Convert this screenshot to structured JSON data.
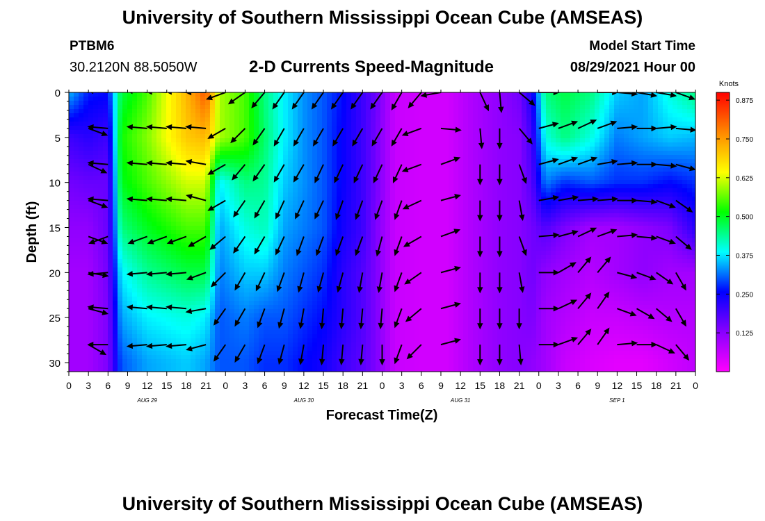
{
  "header": {
    "title": "University of Southern Mississippi Ocean Cube (AMSEAS)",
    "station_id": "PTBM6",
    "station_coords": "30.2120N  88.5050W",
    "plot_title": "2-D Currents Speed-Magnitude",
    "model_start_label": "Model Start Time",
    "model_start_value": "08/29/2021 Hour 00"
  },
  "footer": {
    "title": "University of Southern Mississippi Ocean Cube (AMSEAS)"
  },
  "colors": {
    "arrow": "#000000",
    "frame": "#000000"
  },
  "chart_data": {
    "type": "heatmap",
    "title": "2-D Currents Speed-Magnitude",
    "xlabel": "Forecast Time(Z)",
    "ylabel": "Depth (ft)",
    "x_tick_labels": [
      "0",
      "3",
      "6",
      "9",
      "12",
      "15",
      "18",
      "21",
      "0",
      "3",
      "6",
      "9",
      "12",
      "15",
      "18",
      "21",
      "0",
      "3",
      "6",
      "9",
      "12",
      "15",
      "18",
      "21",
      "0",
      "3",
      "6",
      "9",
      "12",
      "15",
      "18",
      "21",
      "0"
    ],
    "x_hours": [
      0,
      3,
      6,
      9,
      12,
      15,
      18,
      21,
      24,
      27,
      30,
      33,
      36,
      39,
      42,
      45,
      48,
      51,
      54,
      57,
      60,
      63,
      66,
      69,
      72,
      75,
      78,
      81,
      84,
      87,
      90,
      93,
      96
    ],
    "xlim": [
      0,
      96
    ],
    "date_labels": [
      {
        "label": "AUG 29",
        "hour": 12
      },
      {
        "label": "AUG 30",
        "hour": 36
      },
      {
        "label": "AUG 31",
        "hour": 60
      },
      {
        "label": "SEP 1",
        "hour": 84
      }
    ],
    "y_ticks": [
      0,
      5,
      10,
      15,
      20,
      25,
      30
    ],
    "ylim": [
      0,
      31
    ],
    "y_inverted": true,
    "colorbar": {
      "unit": "Knots",
      "ticks": [
        "0.125",
        "0.250",
        "0.375",
        "0.500",
        "0.625",
        "0.750",
        "0.875"
      ],
      "range": [
        0,
        0.9
      ],
      "colors": [
        "#ff00ff",
        "#8800ff",
        "#0000ff",
        "#00ffff",
        "#00ff00",
        "#ffff00",
        "#ff8800",
        "#ff0000"
      ]
    },
    "speed_field": {
      "hours": [
        0,
        3,
        6,
        8,
        12,
        18,
        21,
        23,
        27,
        30,
        33,
        36,
        39,
        42,
        45,
        47,
        50,
        54,
        58,
        62,
        66,
        69,
        71,
        73,
        76,
        80,
        84,
        88,
        92,
        96
      ],
      "depths": [
        0,
        5,
        10,
        15,
        20,
        25,
        30
      ],
      "speed_knots": [
        [
          0.35,
          0.27,
          0.26,
          0.48,
          0.55,
          0.72,
          0.82,
          0.6,
          0.55,
          0.45,
          0.38,
          0.33,
          0.3,
          0.26,
          0.2,
          0.16,
          0.06,
          0.05,
          0.05,
          0.09,
          0.12,
          0.15,
          0.24,
          0.45,
          0.48,
          0.45,
          0.36,
          0.34,
          0.4,
          0.45
        ],
        [
          0.2,
          0.22,
          0.2,
          0.52,
          0.58,
          0.7,
          0.72,
          0.6,
          0.55,
          0.46,
          0.38,
          0.33,
          0.3,
          0.25,
          0.2,
          0.15,
          0.06,
          0.05,
          0.05,
          0.09,
          0.12,
          0.13,
          0.2,
          0.4,
          0.45,
          0.4,
          0.32,
          0.34,
          0.36,
          0.35
        ],
        [
          0.15,
          0.16,
          0.16,
          0.5,
          0.55,
          0.62,
          0.62,
          0.38,
          0.45,
          0.44,
          0.36,
          0.33,
          0.3,
          0.25,
          0.2,
          0.15,
          0.06,
          0.05,
          0.05,
          0.09,
          0.12,
          0.13,
          0.18,
          0.32,
          0.28,
          0.3,
          0.28,
          0.28,
          0.26,
          0.28
        ],
        [
          0.12,
          0.12,
          0.16,
          0.45,
          0.5,
          0.55,
          0.55,
          0.34,
          0.4,
          0.42,
          0.34,
          0.32,
          0.3,
          0.24,
          0.2,
          0.14,
          0.06,
          0.05,
          0.05,
          0.09,
          0.12,
          0.13,
          0.15,
          0.18,
          0.14,
          0.1,
          0.1,
          0.12,
          0.14,
          0.22
        ],
        [
          0.1,
          0.1,
          0.15,
          0.38,
          0.44,
          0.48,
          0.48,
          0.32,
          0.36,
          0.36,
          0.32,
          0.3,
          0.28,
          0.22,
          0.18,
          0.14,
          0.06,
          0.05,
          0.05,
          0.09,
          0.12,
          0.13,
          0.15,
          0.12,
          0.1,
          0.08,
          0.1,
          0.12,
          0.1,
          0.1
        ],
        [
          0.1,
          0.1,
          0.14,
          0.34,
          0.38,
          0.4,
          0.38,
          0.3,
          0.32,
          0.3,
          0.3,
          0.28,
          0.26,
          0.22,
          0.18,
          0.14,
          0.06,
          0.05,
          0.05,
          0.09,
          0.12,
          0.13,
          0.14,
          0.1,
          0.08,
          0.06,
          0.06,
          0.07,
          0.08,
          0.08
        ],
        [
          0.1,
          0.1,
          0.14,
          0.3,
          0.34,
          0.36,
          0.34,
          0.3,
          0.3,
          0.28,
          0.28,
          0.26,
          0.24,
          0.2,
          0.17,
          0.14,
          0.06,
          0.05,
          0.05,
          0.09,
          0.12,
          0.13,
          0.12,
          0.1,
          0.06,
          0.04,
          0.03,
          0.03,
          0.05,
          0.07
        ]
      ]
    },
    "vector_field": {
      "hours": [
        3,
        6,
        12,
        15,
        18,
        21,
        24,
        27,
        30,
        33,
        36,
        39,
        42,
        45,
        48,
        51,
        54,
        57,
        63,
        66,
        69,
        72,
        75,
        78,
        81,
        84,
        87,
        90,
        93,
        96
      ],
      "depths": [
        0,
        4,
        8,
        12,
        16,
        20,
        24,
        28
      ],
      "direction_deg": [
        [
          280,
          275,
          275,
          272,
          272,
          270,
          250,
          235,
          220,
          215,
          215,
          215,
          215,
          215,
          215,
          210,
          220,
          260,
          155,
          175,
          130,
          90,
          80,
          75,
          90,
          95,
          100,
          100,
          110,
          90
        ],
        [
          110,
          275,
          275,
          275,
          275,
          275,
          240,
          225,
          215,
          210,
          210,
          210,
          210,
          210,
          210,
          210,
          250,
          95,
          175,
          180,
          140,
          75,
          70,
          65,
          70,
          85,
          90,
          85,
          95,
          90
        ],
        [
          115,
          275,
          275,
          275,
          275,
          280,
          240,
          220,
          215,
          210,
          210,
          205,
          205,
          205,
          205,
          205,
          250,
          70,
          180,
          180,
          160,
          75,
          70,
          70,
          80,
          85,
          90,
          95,
          105,
          95
        ],
        [
          110,
          275,
          275,
          275,
          275,
          285,
          240,
          215,
          210,
          205,
          205,
          205,
          200,
          200,
          200,
          200,
          245,
          75,
          180,
          180,
          170,
          80,
          80,
          85,
          85,
          90,
          95,
          110,
          125,
          110
        ],
        [
          110,
          250,
          250,
          250,
          250,
          240,
          230,
          215,
          210,
          205,
          200,
          200,
          200,
          200,
          195,
          200,
          240,
          70,
          180,
          180,
          160,
          85,
          75,
          65,
          70,
          85,
          95,
          110,
          130,
          115
        ],
        [
          100,
          265,
          265,
          265,
          265,
          250,
          225,
          210,
          205,
          200,
          195,
          195,
          195,
          190,
          190,
          200,
          235,
          75,
          180,
          180,
          170,
          90,
          60,
          40,
          40,
          105,
          110,
          125,
          150,
          120
        ],
        [
          105,
          275,
          275,
          275,
          275,
          260,
          215,
          210,
          200,
          195,
          190,
          185,
          185,
          185,
          185,
          200,
          230,
          75,
          180,
          180,
          180,
          90,
          65,
          40,
          35,
          110,
          120,
          130,
          150,
          125
        ],
        [
          120,
          270,
          265,
          265,
          265,
          255,
          215,
          210,
          200,
          195,
          190,
          185,
          185,
          185,
          180,
          200,
          225,
          75,
          180,
          180,
          175,
          90,
          70,
          40,
          35,
          85,
          90,
          115,
          140,
          120
        ]
      ],
      "present_from_hour": [
        0,
        3,
        0,
        0,
        0,
        0,
        0,
        0
      ]
    }
  }
}
